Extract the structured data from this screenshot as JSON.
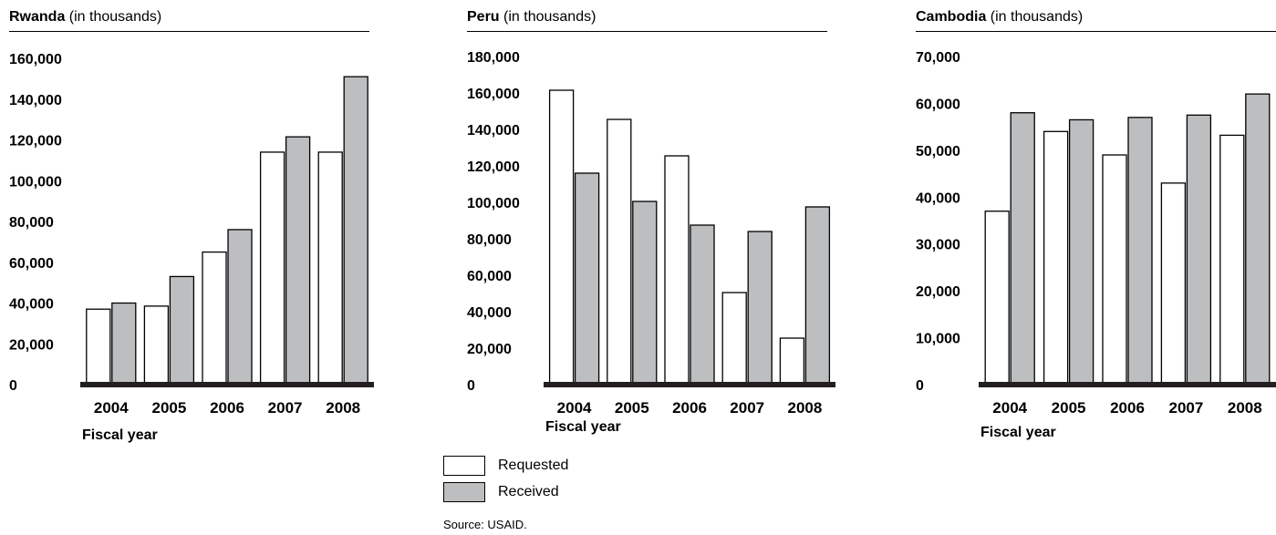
{
  "chart_data": [
    {
      "type": "bar",
      "title": "Rwanda",
      "subtitle": "(in thousands)",
      "xlabel": "Fiscal year",
      "ylabel": "",
      "categories": [
        "2004",
        "2005",
        "2006",
        "2007",
        "2008"
      ],
      "series": [
        {
          "name": "Requested",
          "values": [
            37000,
            38500,
            65000,
            114000,
            114000
          ]
        },
        {
          "name": "Received",
          "values": [
            40000,
            53000,
            76000,
            121500,
            151000
          ]
        }
      ],
      "ylim": [
        0,
        160000
      ],
      "yticks": [
        0,
        20000,
        40000,
        60000,
        80000,
        100000,
        120000,
        140000,
        160000
      ],
      "ytick_labels": [
        "0",
        "20,000",
        "40,000",
        "60,000",
        "80,000",
        "100,000",
        "120,000",
        "140,000",
        "160,000"
      ],
      "grid": false
    },
    {
      "type": "bar",
      "title": "Peru",
      "subtitle": "(in thousands)",
      "xlabel": "Fiscal year",
      "ylabel": "",
      "categories": [
        "2004",
        "2005",
        "2006",
        "2007",
        "2008"
      ],
      "series": [
        {
          "name": "Requested",
          "values": [
            161500,
            145500,
            125500,
            50500,
            25500
          ]
        },
        {
          "name": "Received",
          "values": [
            116000,
            100500,
            87500,
            84000,
            97500
          ]
        }
      ],
      "ylim": [
        0,
        180000
      ],
      "yticks": [
        0,
        20000,
        40000,
        60000,
        80000,
        100000,
        120000,
        140000,
        160000,
        180000
      ],
      "ytick_labels": [
        "0",
        "20,000",
        "40,000",
        "60,000",
        "80,000",
        "100,000",
        "120,000",
        "140,000",
        "160,000",
        "180,000"
      ],
      "grid": false
    },
    {
      "type": "bar",
      "title": "Cambodia",
      "subtitle": "(in thousands)",
      "xlabel": "Fiscal year",
      "ylabel": "",
      "categories": [
        "2004",
        "2005",
        "2006",
        "2007",
        "2008"
      ],
      "series": [
        {
          "name": "Requested",
          "values": [
            37000,
            54000,
            49000,
            43000,
            53200
          ]
        },
        {
          "name": "Received",
          "values": [
            58000,
            56500,
            57000,
            57500,
            62000
          ]
        }
      ],
      "ylim": [
        0,
        70000
      ],
      "yticks": [
        0,
        10000,
        20000,
        30000,
        40000,
        50000,
        60000,
        70000
      ],
      "ytick_labels": [
        "0",
        "10,000",
        "20,000",
        "30,000",
        "40,000",
        "50,000",
        "60,000",
        "70,000"
      ],
      "grid": false
    }
  ],
  "legend": {
    "items": [
      {
        "label": "Requested",
        "color": "#ffffff"
      },
      {
        "label": "Received",
        "color": "#bcbec0"
      }
    ]
  },
  "colors": {
    "requested": "#ffffff",
    "received": "#bcbec0",
    "baseline": "#231f20"
  },
  "source": "Source: USAID."
}
